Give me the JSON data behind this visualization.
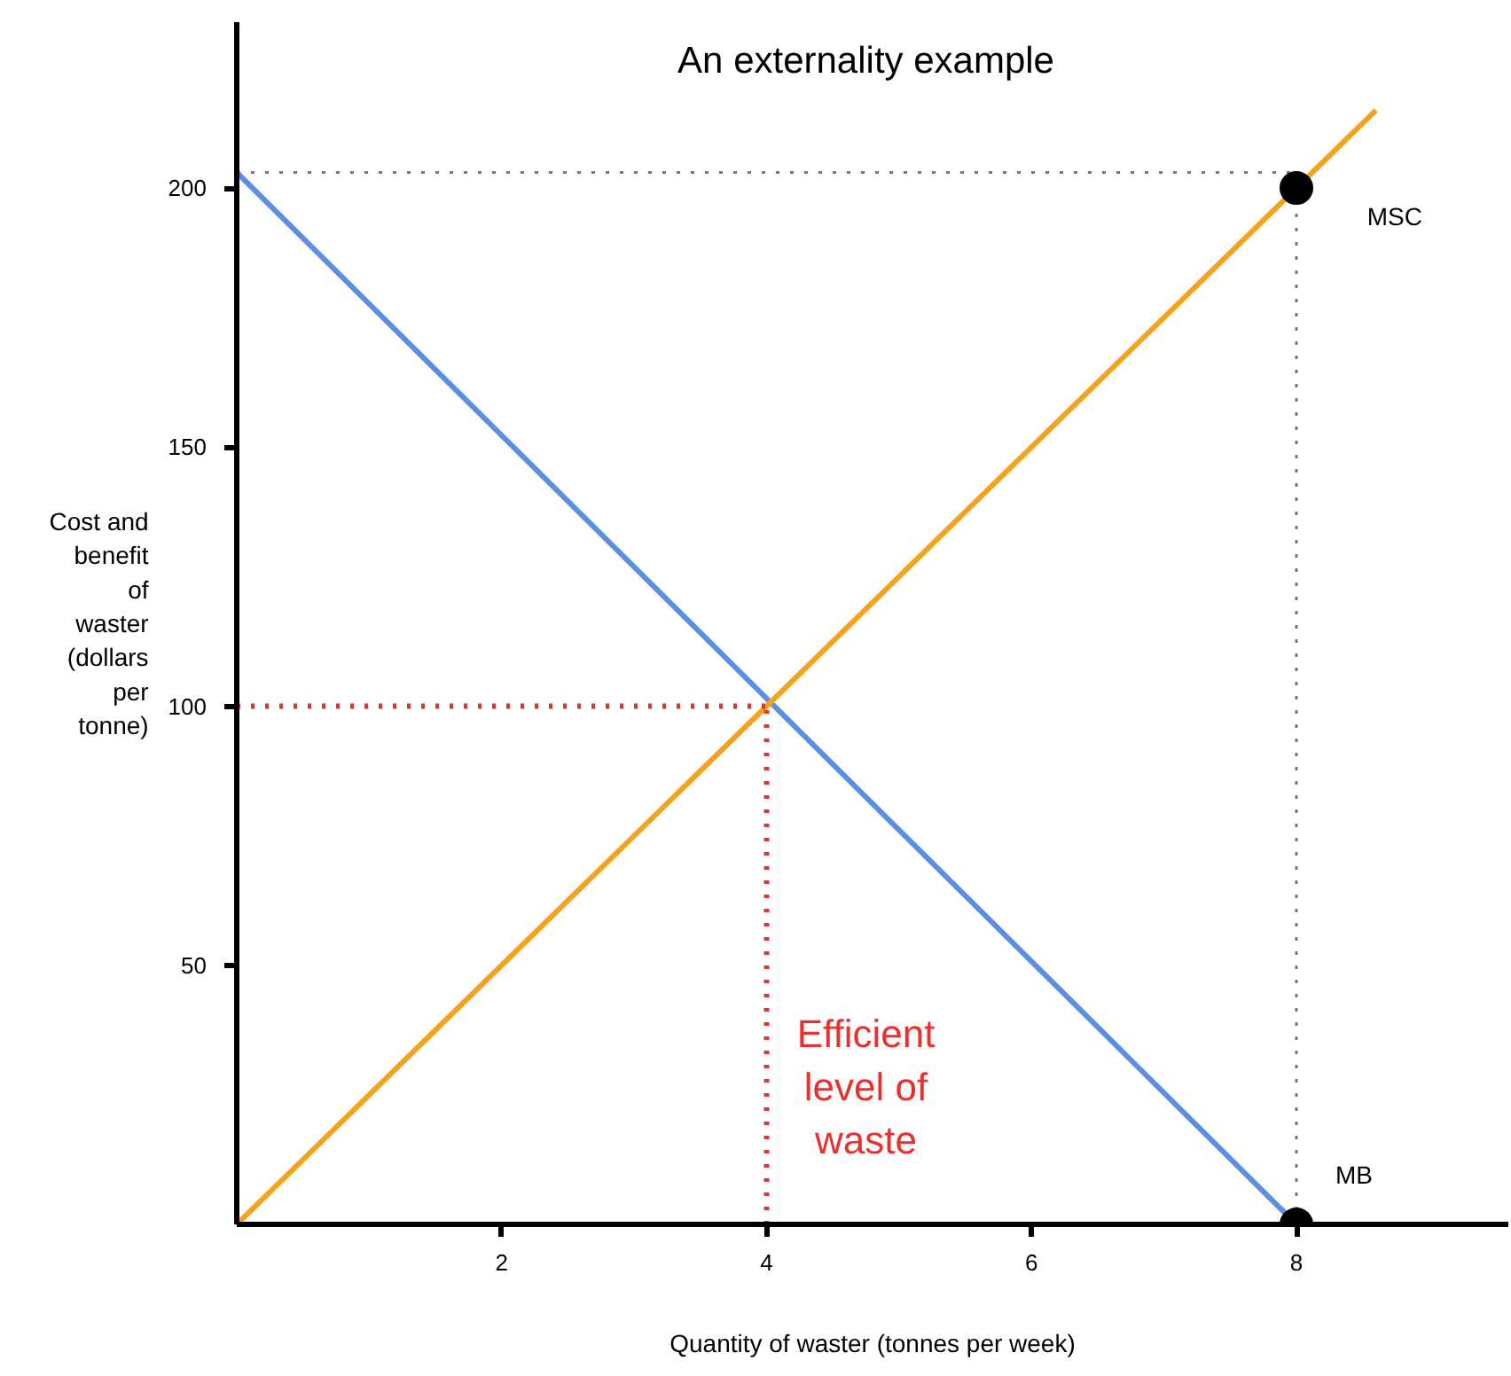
{
  "chart_data": {
    "type": "line",
    "title": "An externality example",
    "xlabel": "Quantity of waster (tonnes per week)",
    "ylabel": "Cost and benefit of waster (dollars per tonne)",
    "xlim": [
      0,
      9.6
    ],
    "ylim": [
      0,
      232
    ],
    "xticks": [
      2,
      4,
      6,
      8
    ],
    "yticks": [
      50,
      100,
      150,
      200
    ],
    "grid": false,
    "series": [
      {
        "name": "MB",
        "color": "#5b8ee6",
        "x": [
          0,
          8
        ],
        "values": [
          203,
          0
        ]
      },
      {
        "name": "MSC",
        "color": "#f5a21c",
        "x": [
          0,
          8.6
        ],
        "values": [
          0,
          215
        ]
      },
      {
        "color": "#e8312f",
        "line_style": "dotted",
        "x": [
          0,
          4
        ],
        "values": [
          100,
          100
        ]
      },
      {
        "color": "#e8312f",
        "line_style": "dotted",
        "x": [
          4,
          4
        ],
        "values": [
          0,
          100
        ]
      },
      {
        "color": "#777777",
        "line_style": "dotted",
        "x": [
          0,
          8
        ],
        "values": [
          203,
          203
        ]
      },
      {
        "color": "#777777",
        "line_style": "dotted",
        "x": [
          8,
          8
        ],
        "values": [
          0,
          203
        ]
      },
      {
        "type": "scatter",
        "color": "#000000",
        "marker": "circle",
        "x": [
          8,
          8
        ],
        "values": [
          200,
          0
        ]
      }
    ],
    "annotations": [
      "Efficient level of waste"
    ]
  }
}
